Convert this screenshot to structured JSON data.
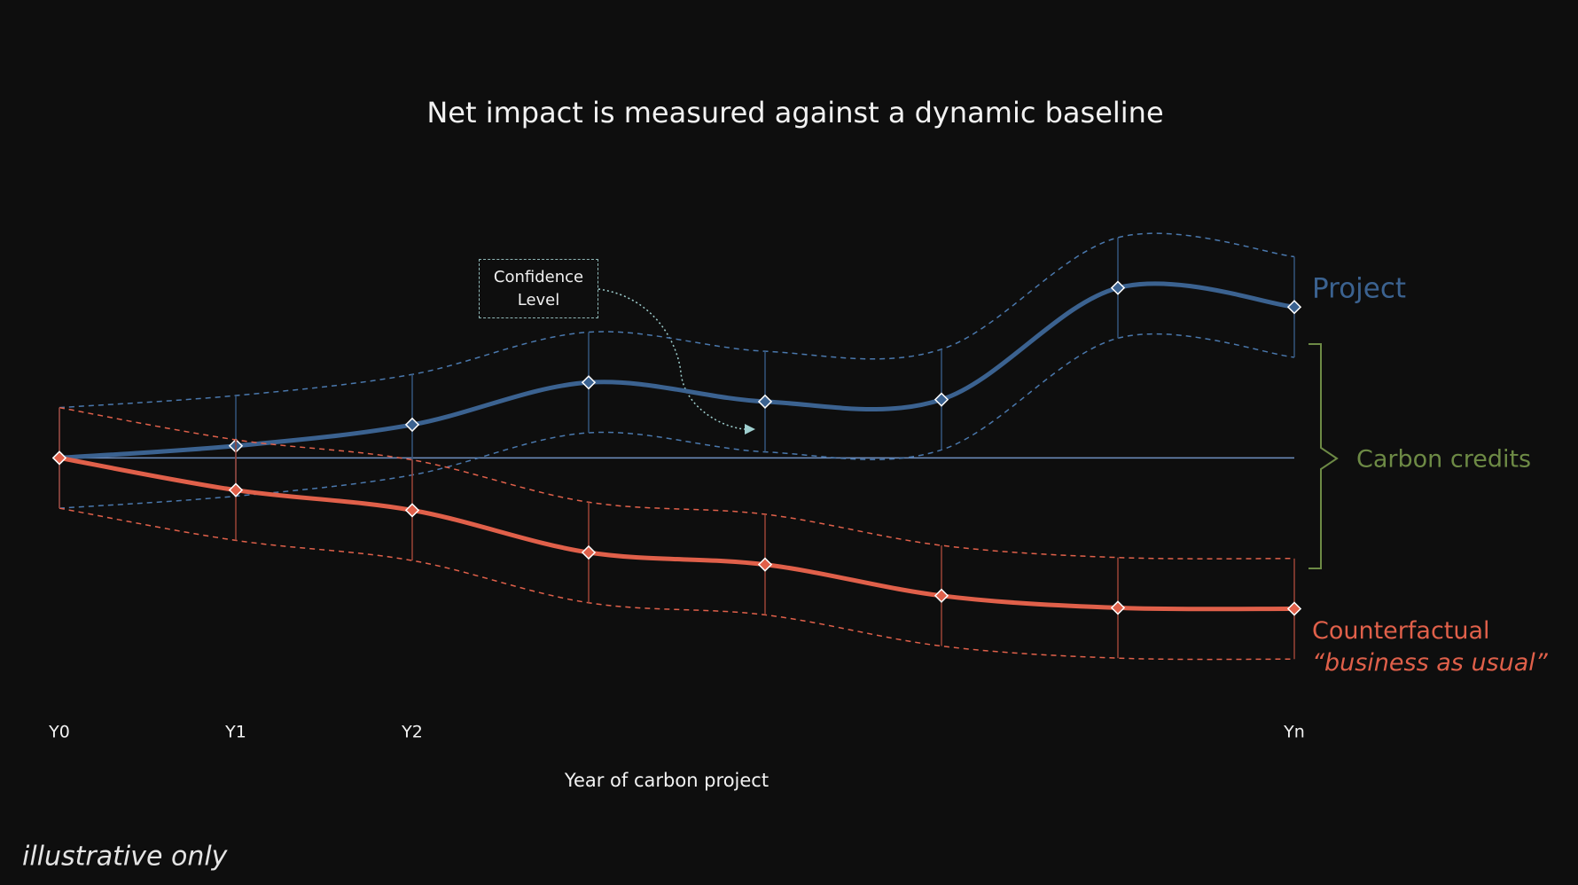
{
  "chart_data": {
    "type": "line",
    "title": "Net impact is measured against a dynamic baseline",
    "x_label": "Year of carbon project",
    "categories": [
      "Y0",
      "Y1",
      "Y2",
      null,
      null,
      null,
      null,
      "Yn"
    ],
    "series": [
      {
        "name": "Project",
        "color": "#3b6290",
        "values": [
          0,
          1.2,
          3.3,
          7.5,
          5.6,
          5.8,
          16.9,
          15.0
        ],
        "errors": [
          5,
          5,
          5,
          5,
          5,
          5,
          5,
          5
        ]
      },
      {
        "name": "Counterfactual",
        "color": "#e0604a",
        "values": [
          0,
          -3.2,
          -5.2,
          -9.4,
          -10.6,
          -13.7,
          -14.9,
          -15.0
        ],
        "errors": [
          5,
          5,
          5,
          5,
          5,
          5,
          5,
          5
        ]
      }
    ],
    "ylim": [
      -25,
      25
    ],
    "annotations": {
      "confidence": "Confidence Level",
      "carbon_credits": "Carbon credits",
      "counterfactual_note": "“business as usual”",
      "footnote": "illustrative only"
    }
  }
}
